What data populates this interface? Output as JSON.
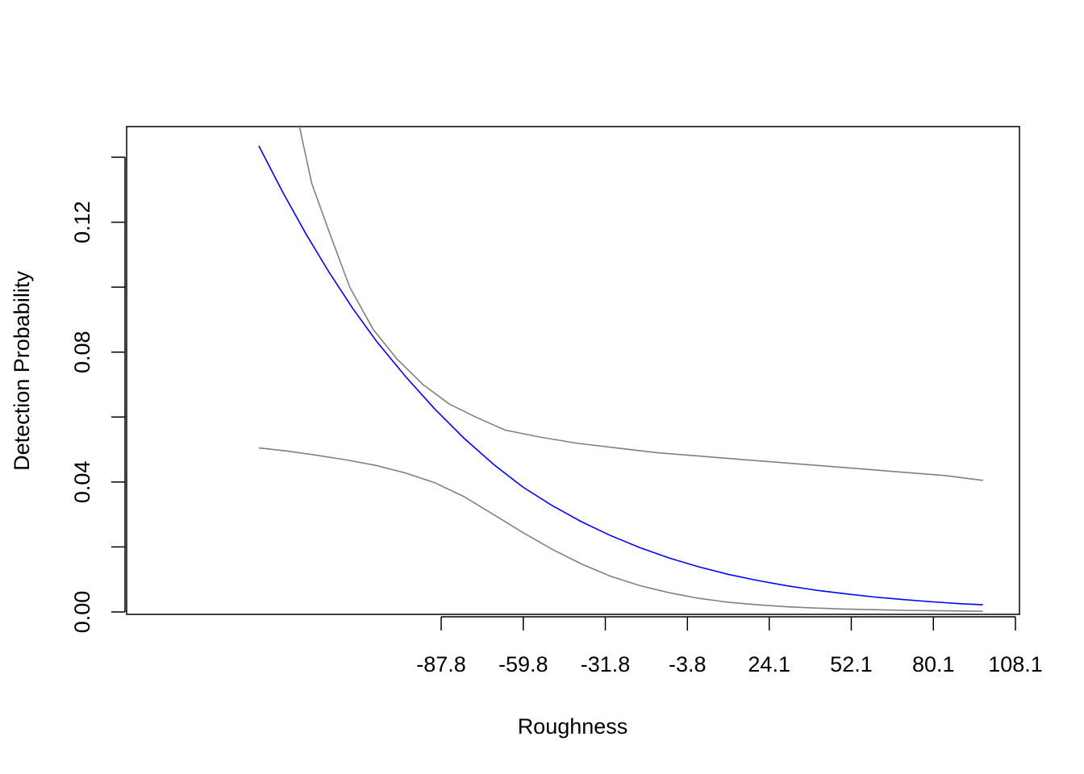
{
  "chart_data": {
    "type": "line",
    "title": "",
    "xlabel": "Roughness",
    "ylabel": "Detection Probability",
    "xlim": [
      -164,
      112
    ],
    "ylim": [
      0,
      0.14
    ],
    "x_ticks": [
      -87.8,
      -59.8,
      -31.8,
      -3.8,
      24.1,
      52.1,
      80.1,
      108.1
    ],
    "x_tick_labels": [
      "-87.8",
      "-59.8",
      "-31.8",
      "-3.8",
      "24.1",
      "52.1",
      "80.1",
      "108.1"
    ],
    "y_ticks": [
      0,
      0.02,
      0.04,
      0.06,
      0.08,
      0.1,
      0.12,
      0.14
    ],
    "y_tick_labels": [
      "0.00",
      "",
      "0.04",
      "",
      "0.08",
      "",
      "0.12",
      ""
    ],
    "grid": false,
    "legend": "none",
    "series": [
      {
        "role": "upper",
        "color": "#808080",
        "x": [
          -137,
          -132,
          -126,
          -119,
          -111,
          -103,
          -94,
          -85,
          -76,
          -66,
          -55,
          -42,
          -28,
          -14,
          0,
          14,
          28,
          42,
          56,
          70,
          84,
          97
        ],
        "y": [
          0.153,
          0.132,
          0.117,
          0.1,
          0.087,
          0.078,
          0.07,
          0.064,
          0.06,
          0.056,
          0.054,
          0.052,
          0.0505,
          0.049,
          0.048,
          0.047,
          0.046,
          0.045,
          0.044,
          0.043,
          0.042,
          0.0405
        ]
      },
      {
        "role": "fit",
        "color": "#0000ff",
        "x": [
          -150,
          -142,
          -134,
          -126,
          -118,
          -110,
          -100,
          -90,
          -80,
          -70,
          -60,
          -50,
          -40,
          -30,
          -20,
          -10,
          0,
          10,
          20,
          30,
          40,
          50,
          60,
          70,
          80,
          90,
          97
        ],
        "y": [
          0.1435,
          0.1295,
          0.1165,
          0.1045,
          0.0935,
          0.0835,
          0.0725,
          0.0625,
          0.0535,
          0.0455,
          0.0385,
          0.0328,
          0.0278,
          0.0235,
          0.0198,
          0.0166,
          0.0139,
          0.0116,
          0.0097,
          0.0081,
          0.0067,
          0.0056,
          0.0046,
          0.0038,
          0.0031,
          0.0025,
          0.0022
        ]
      },
      {
        "role": "lower",
        "color": "#808080",
        "x": [
          -150,
          -140,
          -130,
          -120,
          -110,
          -100,
          -90,
          -80,
          -70,
          -60,
          -50,
          -40,
          -30,
          -20,
          -10,
          0,
          10,
          20,
          30,
          40,
          50,
          60,
          70,
          80,
          90,
          97
        ],
        "y": [
          0.0505,
          0.0495,
          0.0482,
          0.0468,
          0.0451,
          0.0428,
          0.0398,
          0.0355,
          0.03,
          0.0245,
          0.0193,
          0.0148,
          0.011,
          0.0081,
          0.0059,
          0.0042,
          0.003,
          0.0022,
          0.0016,
          0.0012,
          0.0009,
          0.0007,
          0.0005,
          0.0004,
          0.0003,
          0.0002
        ]
      }
    ]
  }
}
